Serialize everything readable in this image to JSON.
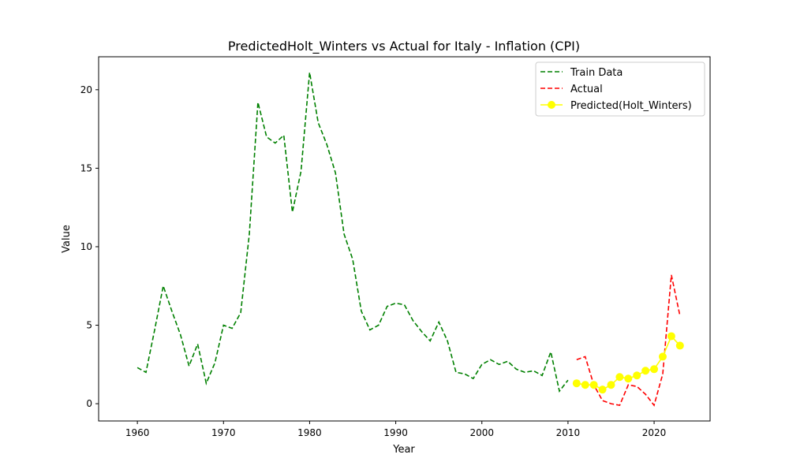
{
  "chart_data": {
    "type": "line",
    "title": "PredictedHolt_Winters vs Actual for Italy - Inflation (CPI)",
    "xlabel": "Year",
    "ylabel": "Value",
    "xlim": [
      1955.5,
      2026.5
    ],
    "ylim": [
      -1.1,
      22.1
    ],
    "xticks": [
      1960,
      1970,
      1980,
      1990,
      2000,
      2010,
      2020
    ],
    "yticks": [
      0,
      5,
      10,
      15,
      20
    ],
    "legend_position": "top-right",
    "grid": false,
    "series": [
      {
        "name": "Train Data",
        "color": "#008000",
        "style": "dashed",
        "x": [
          1960,
          1961,
          1962,
          1963,
          1964,
          1965,
          1966,
          1967,
          1968,
          1969,
          1970,
          1971,
          1972,
          1973,
          1974,
          1975,
          1976,
          1977,
          1978,
          1979,
          1980,
          1981,
          1982,
          1983,
          1984,
          1985,
          1986,
          1987,
          1988,
          1989,
          1990,
          1991,
          1992,
          1993,
          1994,
          1995,
          1996,
          1997,
          1998,
          1999,
          2000,
          2001,
          2002,
          2003,
          2004,
          2005,
          2006,
          2007,
          2008,
          2009,
          2010
        ],
        "y": [
          2.3,
          2.0,
          4.7,
          7.5,
          5.9,
          4.4,
          2.4,
          3.8,
          1.3,
          2.6,
          5.0,
          4.8,
          5.8,
          10.8,
          19.2,
          17.0,
          16.6,
          17.1,
          12.2,
          14.8,
          21.1,
          17.9,
          16.5,
          14.7,
          10.8,
          9.2,
          5.9,
          4.7,
          5.0,
          6.2,
          6.4,
          6.3,
          5.3,
          4.6,
          4.0,
          5.2,
          4.0,
          2.0,
          1.9,
          1.6,
          2.5,
          2.8,
          2.5,
          2.7,
          2.2,
          2.0,
          2.1,
          1.8,
          3.3,
          0.8,
          1.5
        ]
      },
      {
        "name": "Actual",
        "color": "#ff0000",
        "style": "dashed",
        "x": [
          2011,
          2012,
          2013,
          2014,
          2015,
          2016,
          2017,
          2018,
          2019,
          2020,
          2021,
          2022,
          2023
        ],
        "y": [
          2.8,
          3.0,
          1.2,
          0.2,
          0.0,
          -0.1,
          1.2,
          1.1,
          0.6,
          -0.1,
          1.9,
          8.2,
          5.6
        ]
      },
      {
        "name": "Predicted(Holt_Winters)",
        "color": "#ffff00",
        "style": "solid-markers",
        "x": [
          2011,
          2012,
          2013,
          2014,
          2015,
          2016,
          2017,
          2018,
          2019,
          2020,
          2021,
          2022,
          2023
        ],
        "y": [
          1.3,
          1.2,
          1.2,
          0.9,
          1.2,
          1.7,
          1.6,
          1.8,
          2.1,
          2.2,
          3.0,
          4.3,
          3.7
        ]
      }
    ]
  }
}
